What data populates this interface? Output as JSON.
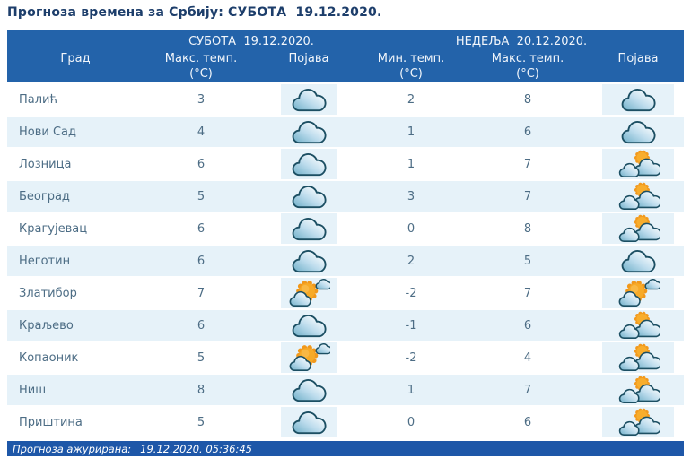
{
  "page_title": "Прогноза времена за Србију: СУБОТА  19.12.2020.",
  "table": {
    "group_headers": {
      "saturday": "СУБОТА  19.12.2020.",
      "sunday": "НЕДЕЉА  20.12.2020."
    },
    "column_headers": {
      "city": "Град",
      "sat_max": "Макс. темп.",
      "sat_phenomenon": "Појава",
      "sun_min": "Мин. темп.",
      "sun_max": "Макс. темп.",
      "sun_phenomenon": "Појава",
      "unit": "(°C)"
    },
    "rows": [
      {
        "city": "Палић",
        "sat_max": 3,
        "sat_icon": "cloudy",
        "sun_min": 2,
        "sun_max": 8,
        "sun_icon": "cloudy"
      },
      {
        "city": "Нови Сад",
        "sat_max": 4,
        "sat_icon": "cloudy",
        "sun_min": 1,
        "sun_max": 6,
        "sun_icon": "cloudy"
      },
      {
        "city": "Лозница",
        "sat_max": 6,
        "sat_icon": "cloudy",
        "sun_min": 1,
        "sun_max": 7,
        "sun_icon": "partly-cloudy"
      },
      {
        "city": "Београд",
        "sat_max": 5,
        "sat_icon": "cloudy",
        "sun_min": 3,
        "sun_max": 7,
        "sun_icon": "partly-cloudy"
      },
      {
        "city": "Крагујевац",
        "sat_max": 6,
        "sat_icon": "cloudy",
        "sun_min": 0,
        "sun_max": 8,
        "sun_icon": "partly-cloudy"
      },
      {
        "city": "Неготин",
        "sat_max": 6,
        "sat_icon": "cloudy",
        "sun_min": 2,
        "sun_max": 5,
        "sun_icon": "cloudy"
      },
      {
        "city": "Златибор",
        "sat_max": 7,
        "sat_icon": "mostly-sunny",
        "sun_min": -2,
        "sun_max": 7,
        "sun_icon": "mostly-sunny"
      },
      {
        "city": "Краљево",
        "sat_max": 6,
        "sat_icon": "cloudy",
        "sun_min": -1,
        "sun_max": 6,
        "sun_icon": "partly-cloudy"
      },
      {
        "city": "Копаоник",
        "sat_max": 5,
        "sat_icon": "mostly-sunny",
        "sun_min": -2,
        "sun_max": 4,
        "sun_icon": "partly-cloudy"
      },
      {
        "city": "Ниш",
        "sat_max": 8,
        "sat_icon": "cloudy",
        "sun_min": 1,
        "sun_max": 7,
        "sun_icon": "partly-cloudy"
      },
      {
        "city": "Приштина",
        "sat_max": 5,
        "sat_icon": "cloudy",
        "sun_min": 0,
        "sun_max": 6,
        "sun_icon": "partly-cloudy"
      }
    ]
  },
  "footer": {
    "updated_label": "Прогноза ажурирана:",
    "updated_time": "19.12.2020. 05:36:45"
  },
  "icons": {
    "cloudy": "cloud-icon",
    "partly-cloudy": "sun-behind-clouds-icon",
    "mostly-sunny": "sun-with-small-clouds-icon"
  },
  "colors": {
    "header_bar": "#2363aa",
    "footer_bar": "#1e57a8",
    "title_text": "#1d3e6b",
    "cell_text": "#4d6d85",
    "alt_row": "#e6f2f9",
    "icon_band": "#e6f2f9",
    "header_text": "#f2f6fb",
    "sun_fill": "#f7aa27",
    "cloud_outline": "#1c4f63"
  }
}
